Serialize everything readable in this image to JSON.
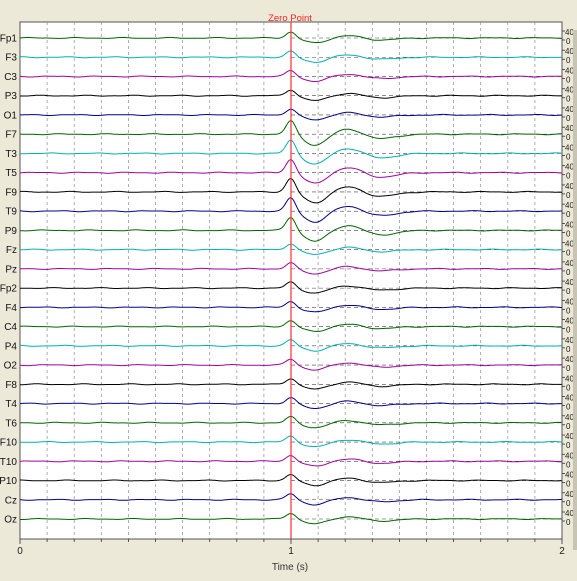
{
  "chart_data": {
    "type": "line",
    "title": "",
    "marker_label": "Zero Point",
    "marker_x": 1,
    "xlabel": "Time (s)",
    "xlim": [
      0,
      2
    ],
    "x_ticks": [
      "0",
      "1",
      "2"
    ],
    "amplitude_ticks": [
      "40",
      "0"
    ],
    "grid": true,
    "channels": [
      {
        "name": "Fp1",
        "color": "#006400"
      },
      {
        "name": "F3",
        "color": "#00b0b0"
      },
      {
        "name": "C3",
        "color": "#a000a0"
      },
      {
        "name": "P3",
        "color": "#000000"
      },
      {
        "name": "O1",
        "color": "#00008b"
      },
      {
        "name": "F7",
        "color": "#006400"
      },
      {
        "name": "T3",
        "color": "#00b0b0"
      },
      {
        "name": "T5",
        "color": "#a000a0"
      },
      {
        "name": "F9",
        "color": "#000000"
      },
      {
        "name": "T9",
        "color": "#00008b"
      },
      {
        "name": "P9",
        "color": "#006400"
      },
      {
        "name": "Fz",
        "color": "#00b0b0"
      },
      {
        "name": "Pz",
        "color": "#a000a0"
      },
      {
        "name": "Fp2",
        "color": "#000000"
      },
      {
        "name": "F4",
        "color": "#00008b"
      },
      {
        "name": "C4",
        "color": "#006400"
      },
      {
        "name": "P4",
        "color": "#00b0b0"
      },
      {
        "name": "O2",
        "color": "#a000a0"
      },
      {
        "name": "F8",
        "color": "#000000"
      },
      {
        "name": "T4",
        "color": "#00008b"
      },
      {
        "name": "T6",
        "color": "#006400"
      },
      {
        "name": "F10",
        "color": "#00b0b0"
      },
      {
        "name": "T10",
        "color": "#a000a0"
      },
      {
        "name": "P10",
        "color": "#000000"
      },
      {
        "name": "Cz",
        "color": "#00008b"
      },
      {
        "name": "Oz",
        "color": "#006400"
      }
    ]
  },
  "colors": {
    "background": "#ffffff",
    "frame": "#ece9d8",
    "marker": "#ff3030",
    "grid": "#8c8c8c"
  }
}
